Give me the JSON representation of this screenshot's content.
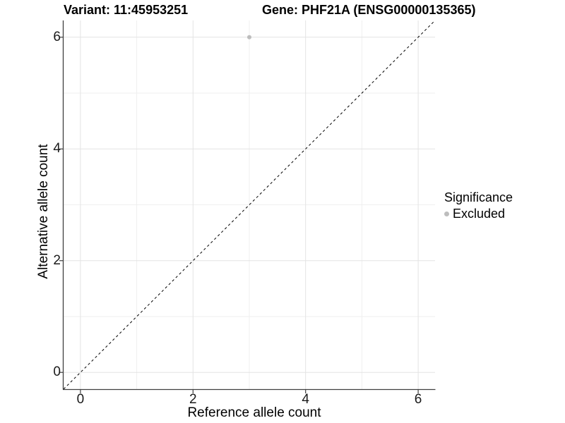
{
  "figure": {
    "title_left": "Variant: 11:45953251",
    "title_right": "Gene: PHF21A (ENSG00000135365)"
  },
  "chart_data": {
    "type": "scatter",
    "title_left": "Variant: 11:45953251",
    "title_right": "Gene: PHF21A (ENSG00000135365)",
    "xlabel": "Reference allele count",
    "ylabel": "Alternative allele count",
    "xlim": [
      -0.3,
      6.3
    ],
    "ylim": [
      -0.3,
      6.3
    ],
    "x_tick_values": [
      0,
      2,
      4,
      6
    ],
    "x_tick_labels": [
      "0",
      "2",
      "4",
      "6"
    ],
    "y_tick_values": [
      0,
      2,
      4,
      6
    ],
    "y_tick_labels": [
      "0",
      "2",
      "4",
      "6"
    ],
    "minor_grid_values": [
      1,
      3,
      5
    ],
    "grid": "on",
    "points": [
      {
        "x": 3,
        "y": 6,
        "significance": "Excluded"
      }
    ],
    "identity_line": {
      "style": "dashed",
      "slope": 1,
      "intercept": 0
    },
    "legend": {
      "title": "Significance",
      "position": "right",
      "items": [
        {
          "label": "Excluded",
          "color": "#bdbdbd",
          "marker": "circle"
        }
      ]
    },
    "colors": {
      "point_excluded": "#bdbdbd",
      "grid_major": "#e3e3e3",
      "grid_minor": "#efefef",
      "axis_line": "#404040",
      "tick_mark": "#404040",
      "identity_line": "#000000"
    }
  }
}
